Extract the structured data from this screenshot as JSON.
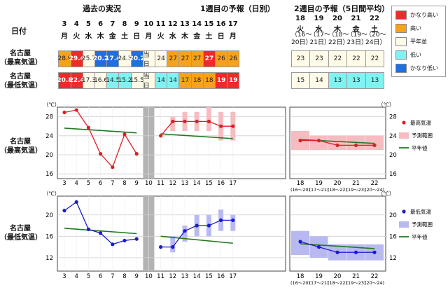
{
  "header": {
    "past_title": "過去の実況",
    "week1_title": "1週目の予報（日別）",
    "week2_title": "2週目の予報（5日間平均）",
    "date_label": "日付"
  },
  "days": [
    {
      "d": "3",
      "w": "月"
    },
    {
      "d": "4",
      "w": "火"
    },
    {
      "d": "5",
      "w": "水"
    },
    {
      "d": "6",
      "w": "木"
    },
    {
      "d": "7",
      "w": "金"
    },
    {
      "d": "8",
      "w": "土"
    },
    {
      "d": "9",
      "w": "日"
    },
    {
      "d": "10",
      "w": "月"
    },
    {
      "d": "11",
      "w": "火"
    },
    {
      "d": "12",
      "w": "水"
    },
    {
      "d": "13",
      "w": "木"
    },
    {
      "d": "14",
      "w": "金"
    },
    {
      "d": "15",
      "w": "土"
    },
    {
      "d": "16",
      "w": "日"
    },
    {
      "d": "17",
      "w": "月"
    }
  ],
  "week2": [
    {
      "d": "18",
      "w": "火",
      "range": "（16〜20日）"
    },
    {
      "d": "19",
      "w": "水",
      "range": "（17〜21日）"
    },
    {
      "d": "20",
      "w": "木",
      "range": "（18〜22日）"
    },
    {
      "d": "21",
      "w": "金",
      "range": "（19〜23日）"
    },
    {
      "d": "22",
      "w": "土",
      "range": "（20〜24日）"
    }
  ],
  "rows": {
    "max_label_1": "名古屋",
    "max_label_2": "（最高気温）",
    "min_label_1": "名古屋",
    "min_label_2": "（最低気温）"
  },
  "today_label": "当日",
  "table_max": [
    "28.9",
    "29.4",
    "25.7",
    "20.2",
    "17.4",
    "24.3",
    "20.2",
    "当日",
    "24",
    "27",
    "27",
    "27",
    "27",
    "26",
    "26"
  ],
  "table_max_cls": [
    "o",
    "R",
    "n",
    "B",
    "B",
    "n",
    "B",
    "t",
    "n",
    "o",
    "o",
    "o",
    "R",
    "o",
    "o"
  ],
  "table_min": [
    "20.8",
    "22.4",
    "17.3",
    "16.6",
    "14.5",
    "15.2",
    "15.5",
    "当日",
    "14",
    "14",
    "17",
    "18",
    "18",
    "19",
    "19"
  ],
  "table_min_cls": [
    "R",
    "R",
    "n",
    "n",
    "c",
    "c",
    "n",
    "t",
    "c",
    "c",
    "o",
    "o",
    "o",
    "R",
    "R"
  ],
  "table2_max": [
    "23",
    "23",
    "22",
    "22",
    "22"
  ],
  "table2_max_cls": [
    "n",
    "n",
    "n",
    "n",
    "n"
  ],
  "table2_min": [
    "15",
    "14",
    "13",
    "13",
    "13"
  ],
  "table2_min_cls": [
    "n",
    "n",
    "c",
    "c",
    "c"
  ],
  "legend": {
    "items": [
      {
        "label": "かなり高い",
        "color": "#ee2a2a"
      },
      {
        "label": "高い",
        "color": "#f7a21b"
      },
      {
        "label": "平年並",
        "color": "#fffbe8"
      },
      {
        "label": "低い",
        "color": "#7ff2f2"
      },
      {
        "label": "かなり低い",
        "color": "#1e6fe0"
      }
    ]
  },
  "cell_colors": {
    "R": "#ee2a2a",
    "o": "#f7a21b",
    "n": "#fffbe8",
    "c": "#7ff2f2",
    "B": "#1e6fe0",
    "t": "#fffbe8"
  },
  "chart_data": [
    {
      "type": "line",
      "title": "名古屋（最高気温）",
      "unit": "（℃）",
      "x_daily": [
        "3",
        "4",
        "5",
        "6",
        "7",
        "8",
        "9",
        "10",
        "11",
        "12",
        "13",
        "14",
        "15",
        "16",
        "17"
      ],
      "x_week2": [
        "18",
        "19",
        "20",
        "21",
        "22"
      ],
      "x_week2_ranges": [
        "(16〜20)",
        "(17〜21)",
        "(18〜22)",
        "(19〜23)",
        "(20〜24)"
      ],
      "ylim": [
        15,
        30
      ],
      "yticks": [
        16,
        20,
        24,
        28
      ],
      "observed": {
        "x": [
          3,
          4,
          5,
          6,
          7,
          8,
          9
        ],
        "values": [
          28.9,
          29.4,
          25.7,
          20.2,
          17.4,
          24.3,
          20.2
        ]
      },
      "forecast": {
        "x": [
          11,
          12,
          13,
          14,
          15,
          16,
          17
        ],
        "values": [
          24,
          27,
          27,
          27,
          27,
          26,
          26
        ],
        "range_low": [
          null,
          25,
          25,
          25,
          25,
          23,
          23
        ],
        "range_high": [
          null,
          28,
          29,
          29,
          30,
          29,
          29
        ]
      },
      "normal_daily": {
        "x": [
          3,
          9
        ],
        "values": [
          25.6,
          24.6
        ]
      },
      "normal_forecast": {
        "x": [
          11,
          17
        ],
        "values": [
          24.4,
          23.4
        ]
      },
      "week2": {
        "values": [
          23,
          23,
          22,
          22,
          22
        ],
        "range_low": [
          21,
          21,
          21,
          21,
          21
        ],
        "range_high": [
          25,
          24,
          24,
          24,
          24
        ],
        "normal": [
          23.2,
          22.4
        ]
      },
      "legend": {
        "observed": "最高気温",
        "range": "予測範囲",
        "normal": "平年値"
      },
      "colors": {
        "line": "#dd1f26",
        "range": "#f6bcc2",
        "normal": "#1f7a1f"
      }
    },
    {
      "type": "line",
      "title": "名古屋（最低気温）",
      "unit": "（℃）",
      "x_daily": [
        "3",
        "4",
        "5",
        "6",
        "7",
        "8",
        "9",
        "10",
        "11",
        "12",
        "13",
        "14",
        "15",
        "16",
        "17"
      ],
      "x_week2": [
        "18",
        "19",
        "20",
        "21",
        "22"
      ],
      "x_week2_ranges": [
        "(16〜20)",
        "(17〜21)",
        "(18〜22)",
        "(19〜23)",
        "(20〜24)"
      ],
      "ylim": [
        9.5,
        23.5
      ],
      "yticks": [
        12,
        16,
        20
      ],
      "observed": {
        "x": [
          3,
          4,
          5,
          6,
          7,
          8,
          9
        ],
        "values": [
          20.8,
          22.4,
          17.3,
          16.6,
          14.5,
          15.2,
          15.5
        ]
      },
      "forecast": {
        "x": [
          11,
          12,
          13,
          14,
          15,
          16,
          17
        ],
        "values": [
          14,
          14,
          17,
          18,
          18,
          19,
          19
        ],
        "range_low": [
          null,
          13,
          15,
          16,
          16,
          17,
          17
        ],
        "range_high": [
          null,
          16,
          18,
          20,
          20,
          21,
          20
        ]
      },
      "normal_daily": {
        "x": [
          3,
          9
        ],
        "values": [
          17.5,
          16.5
        ]
      },
      "normal_forecast": {
        "x": [
          11,
          17
        ],
        "values": [
          16.0,
          14.7
        ]
      },
      "week2": {
        "values": [
          15,
          14,
          13,
          13,
          13
        ],
        "range_low": [
          12.5,
          12,
          11.5,
          11.5,
          11.5
        ],
        "range_high": [
          17,
          16,
          14.5,
          14.5,
          14.5
        ],
        "normal": [
          14.6,
          13.7
        ]
      },
      "legend": {
        "observed": "最低気温",
        "range": "予測範囲",
        "normal": "平年値"
      },
      "colors": {
        "line": "#1a1ad0",
        "range": "#b9b9f2",
        "normal": "#1f7a1f"
      }
    }
  ]
}
